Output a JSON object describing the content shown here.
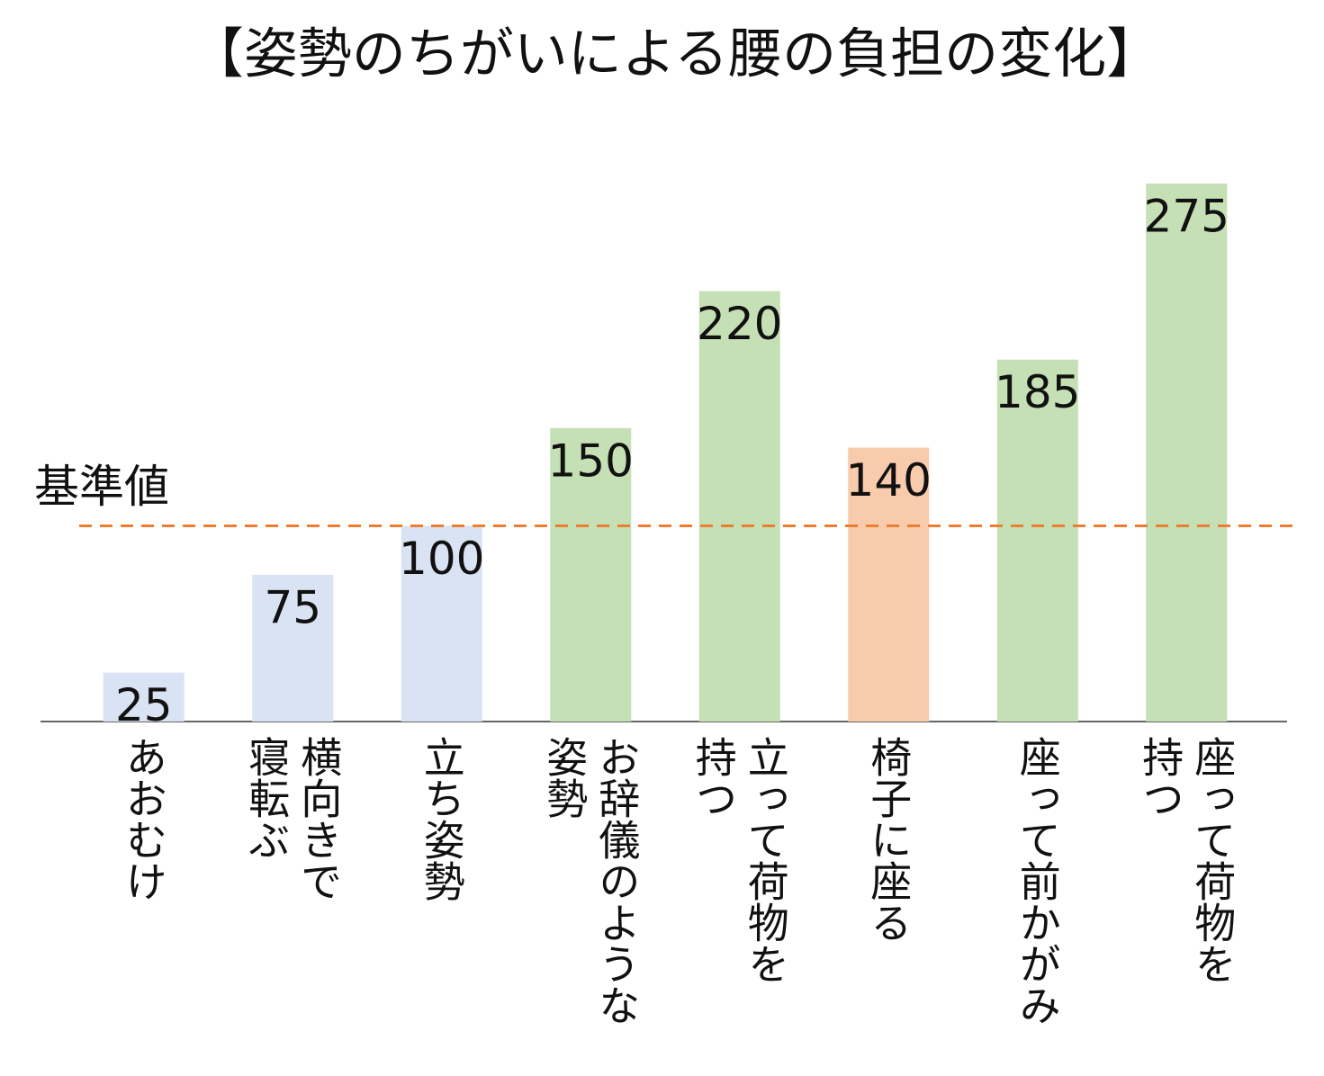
{
  "chart_data": {
    "type": "bar",
    "title": "【姿勢のちがいによる腰の負担の変化】",
    "categories": [
      "あおむけ",
      "横向きで寝転ぶ",
      "立ち姿勢",
      "お辞儀のような姿勢",
      "立って荷物を持つ",
      "椅子に座る",
      "座って前かがみ",
      "座って荷物を持つ"
    ],
    "values": [
      25,
      75,
      100,
      150,
      220,
      140,
      185,
      275
    ],
    "colors": [
      "#dae3f3",
      "#dae3f3",
      "#dae3f3",
      "#c5e0b4",
      "#c5e0b4",
      "#f8cbad",
      "#c5e0b4",
      "#c5e0b4"
    ],
    "reference": {
      "label": "基準値",
      "value": 100,
      "color": "#ed7d31"
    }
  }
}
